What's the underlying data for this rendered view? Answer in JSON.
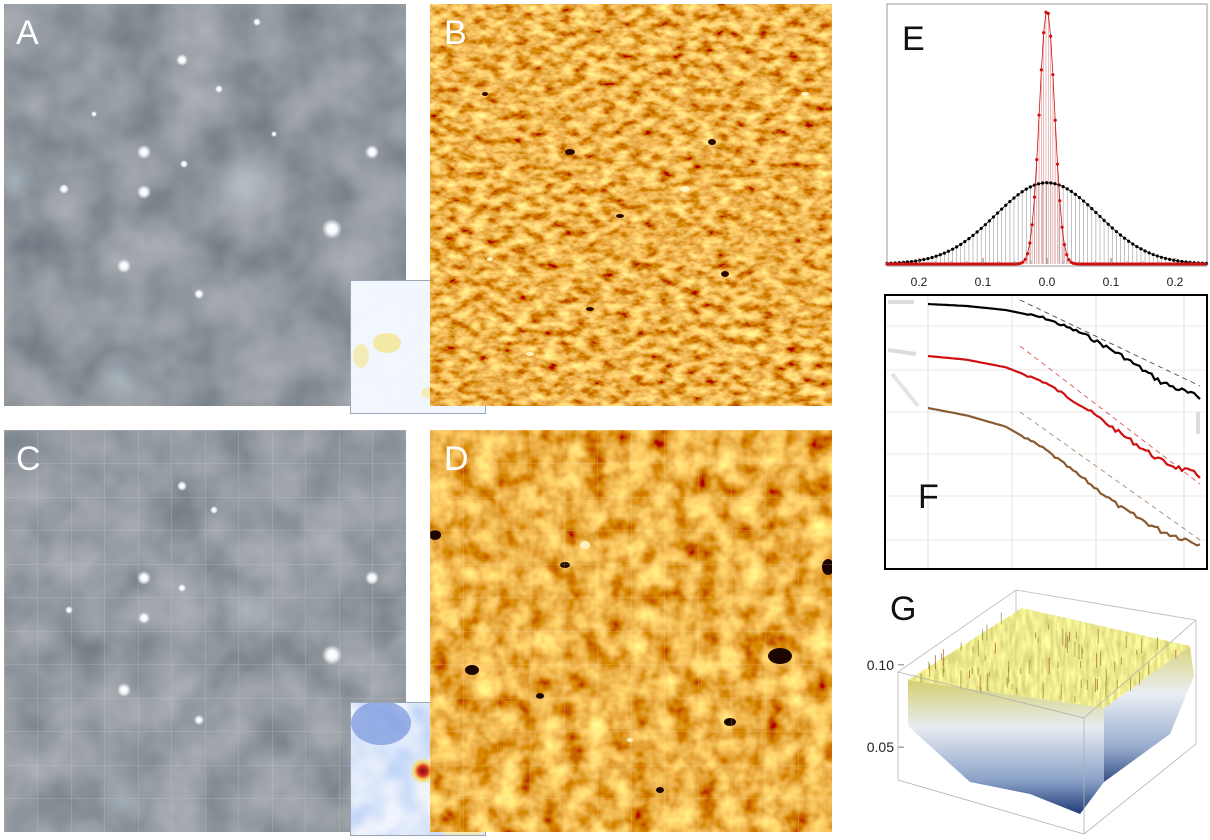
{
  "panels": {
    "a": {
      "label": "A"
    },
    "b": {
      "label": "B"
    },
    "c": {
      "label": "C"
    },
    "d": {
      "label": "D"
    },
    "e": {
      "label": "E"
    },
    "f": {
      "label": "F"
    },
    "g": {
      "label": "G"
    }
  },
  "colors": {
    "fluorescence_bg": "#3b4249",
    "heatmap_base": "#d9600f",
    "series_black": "#000000",
    "series_red": "#d01010",
    "series_brown": "#8a5a30",
    "surface_top": "#d8d060",
    "surface_edge": "#2a4d8f"
  },
  "chart_data": [
    {
      "panel": "E",
      "type": "line",
      "x_tick_labels": [
        "0.2",
        "0.1",
        "0.0",
        "0.1",
        "0.2"
      ],
      "xlim": [
        -0.25,
        0.25
      ],
      "grid": false,
      "series": [
        {
          "color": "black",
          "shape": "broad gaussian",
          "center": 0.0,
          "sigma": 0.08,
          "peak_fraction": 0.32
        },
        {
          "color": "red",
          "shape": "narrow gaussian",
          "center": 0.0,
          "sigma": 0.012,
          "peak_fraction": 1.0
        }
      ]
    },
    {
      "panel": "F",
      "type": "line",
      "grid": true,
      "series": [
        {
          "color": "black",
          "profile": [
            1.0,
            0.99,
            0.97,
            0.93,
            0.85,
            0.74,
            0.61,
            0.53
          ]
        },
        {
          "color": "red",
          "profile": [
            1.0,
            0.98,
            0.94,
            0.86,
            0.73,
            0.58,
            0.44,
            0.36
          ]
        },
        {
          "color": "brown",
          "profile": [
            1.0,
            0.96,
            0.9,
            0.78,
            0.62,
            0.46,
            0.34,
            0.27
          ]
        }
      ]
    },
    {
      "panel": "G",
      "type": "heatmap",
      "z_tick_labels": [
        "0.10",
        "0.05"
      ],
      "zlim": [
        0.03,
        0.12
      ]
    }
  ]
}
